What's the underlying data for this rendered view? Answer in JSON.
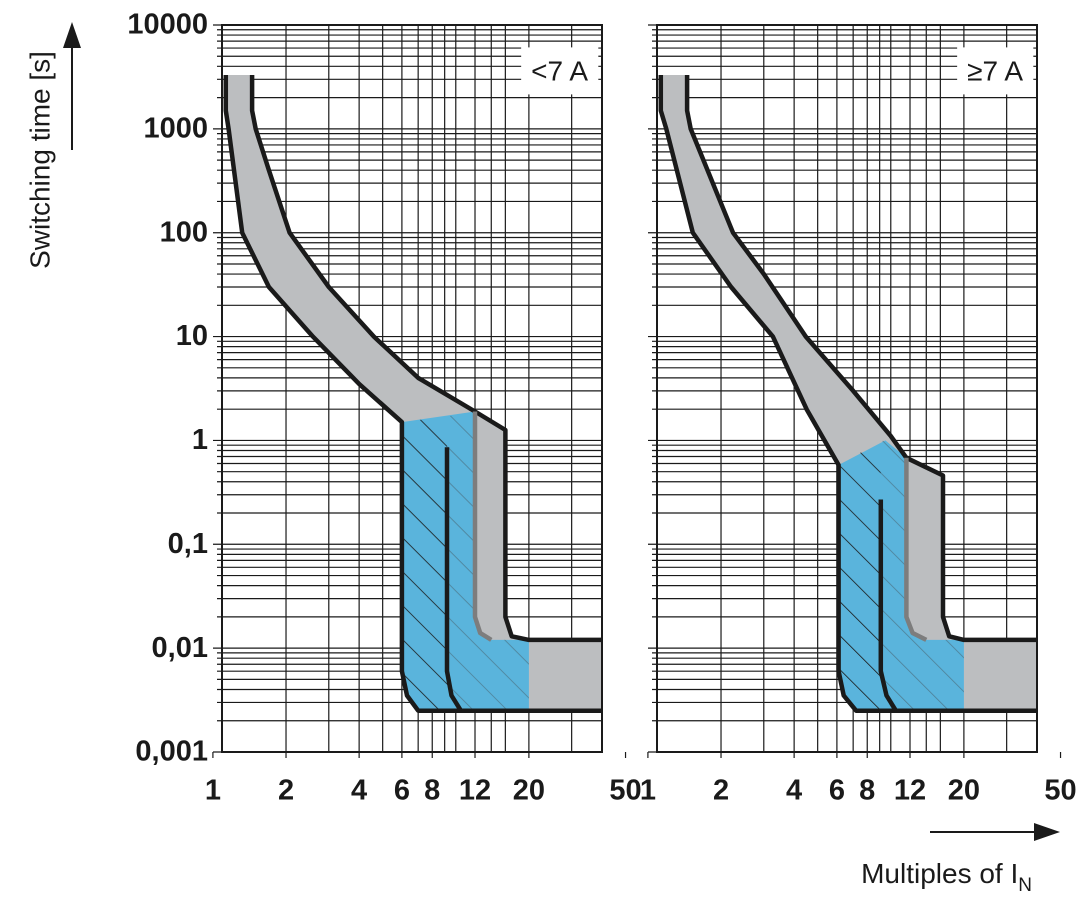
{
  "chart_data": [
    {
      "type": "band",
      "title": "<7 A",
      "y_label": "Switching time [s]",
      "log_x": true,
      "log_y": true,
      "xlim": [
        1.09,
        40
      ],
      "ylim": [
        0.001,
        10000
      ],
      "xticks": [
        1,
        2,
        4,
        6,
        8,
        12,
        20,
        50
      ],
      "yticks": [
        {
          "value": 0.001,
          "label": "0,001"
        },
        {
          "value": 0.01,
          "label": "0,01"
        },
        {
          "value": 0.1,
          "label": "0,1"
        },
        1,
        10,
        100,
        1000,
        10000
      ],
      "ytick_labels": true,
      "xgrid": [
        2,
        3,
        4,
        5,
        6,
        7,
        8,
        9,
        10,
        12,
        14,
        16,
        20,
        30,
        40
      ],
      "y_minor_multiples": [
        2,
        3,
        4,
        5,
        6,
        7,
        8,
        9
      ],
      "fills": [
        {
          "color": "#bcbec0",
          "x": [
            1.13,
            1.13,
            1.16,
            1.32,
            1.7,
            2.58,
            4,
            6,
            6,
            6.3,
            7,
            40,
            40,
            20,
            17,
            16,
            16,
            12,
            7,
            4.6,
            3,
            2.07,
            1.7,
            1.5,
            1.45,
            1.45
          ],
          "values": [
            3300,
            1500,
            1000,
            100,
            30,
            10,
            3.5,
            1.5,
            0.006,
            0.0035,
            0.0025,
            0.0025,
            0.012,
            0.012,
            0.013,
            0.02,
            1.26,
            1.9,
            4,
            10,
            30,
            100,
            400,
            1000,
            1500,
            3300
          ]
        },
        {
          "color": "#5ab4dc",
          "x": [
            6,
            12,
            12,
            12.6,
            14,
            20,
            20,
            7,
            6.3,
            6
          ],
          "values": [
            1.5,
            1.9,
            0.02,
            0.014,
            0.012,
            0.012,
            0.0025,
            0.0025,
            0.0035,
            0.006
          ]
        },
        {
          "hatch": "#1a1a1a",
          "x": [
            6,
            9.2,
            9.2,
            9.6,
            10.5,
            7,
            6.3,
            6
          ],
          "values": [
            1.5,
            1.7,
            0.006,
            0.0035,
            0.0025,
            0.0025,
            0.0035,
            0.006
          ]
        },
        {
          "hatch": "#4f7f95",
          "x": [
            9.2,
            12,
            12,
            12.6,
            14,
            20,
            20,
            10.5,
            9.6,
            9.2
          ],
          "values": [
            1.7,
            1.9,
            0.02,
            0.014,
            0.012,
            0.012,
            0.0025,
            0.0025,
            0.0035,
            0.006
          ]
        }
      ],
      "lines": [
        {
          "color": "#1a1a1a",
          "x": [
            1.13,
            1.13,
            1.16,
            1.32,
            1.7,
            2.58,
            4,
            6,
            6,
            6.3,
            7,
            40
          ],
          "values": [
            3300,
            1500,
            1000,
            100,
            30,
            10,
            3.5,
            1.5,
            0.006,
            0.0035,
            0.0025,
            0.0025
          ]
        },
        {
          "color": "#1a1a1a",
          "x": [
            1.45,
            1.45,
            1.5,
            1.7,
            2.07,
            3,
            4.6,
            7,
            12,
            16,
            16,
            17,
            20,
            40
          ],
          "values": [
            3300,
            1500,
            1000,
            400,
            100,
            30,
            10,
            4,
            1.9,
            1.26,
            0.02,
            0.013,
            0.012,
            0.012
          ]
        },
        {
          "color": "#1a1a1a",
          "x": [
            9.2,
            9.2,
            9.6,
            10.5
          ],
          "values": [
            0.86,
            0.006,
            0.0035,
            0.0025
          ]
        },
        {
          "color": "#7d7d7d",
          "x": [
            12,
            12,
            12.6,
            14
          ],
          "values": [
            1.9,
            0.02,
            0.014,
            0.012
          ]
        }
      ]
    },
    {
      "type": "band",
      "title": "≥7 A",
      "x_label": "Multiples of I",
      "x_label_subscript": "N",
      "log_x": true,
      "log_y": true,
      "xlim": [
        1.09,
        40
      ],
      "ylim": [
        0.001,
        10000
      ],
      "xticks": [
        1,
        2,
        4,
        6,
        8,
        12,
        20,
        50
      ],
      "yticks": [
        0.001,
        0.01,
        0.1,
        1,
        10,
        100,
        1000,
        10000
      ],
      "ytick_labels": false,
      "xgrid": [
        2,
        3,
        4,
        5,
        6,
        7,
        8,
        9,
        10,
        12,
        14,
        16,
        20,
        30,
        40
      ],
      "y_minor_multiples": [
        2,
        3,
        4,
        5,
        6,
        7,
        8,
        9
      ],
      "fills": [
        {
          "color": "#bcbec0",
          "x": [
            1.13,
            1.13,
            1.19,
            1.53,
            2.2,
            3.27,
            4.5,
            6.1,
            6.1,
            6.4,
            7.2,
            40,
            40,
            20,
            17.4,
            16.4,
            16.4,
            11.6,
            10,
            7,
            4.47,
            3,
            2.24,
            1.5,
            1.45,
            1.45
          ],
          "values": [
            3300,
            1500,
            1000,
            100,
            30,
            10,
            2,
            0.58,
            0.006,
            0.0035,
            0.0025,
            0.0025,
            0.012,
            0.012,
            0.013,
            0.02,
            0.46,
            0.68,
            1.1,
            3,
            10,
            40,
            100,
            1000,
            1500,
            3300
          ]
        },
        {
          "color": "#5ab4dc",
          "x": [
            6.1,
            9.5,
            11.6,
            11.6,
            12.3,
            14,
            20,
            20,
            7.2,
            6.4,
            6.1
          ],
          "values": [
            0.58,
            1.0,
            0.68,
            0.02,
            0.014,
            0.012,
            0.012,
            0.0025,
            0.0025,
            0.0035,
            0.006
          ]
        },
        {
          "hatch": "#1a1a1a",
          "x": [
            6.1,
            9.1,
            9.1,
            9.6,
            10.5,
            7.2,
            6.4,
            6.1
          ],
          "values": [
            0.58,
            0.98,
            0.006,
            0.0035,
            0.0025,
            0.0025,
            0.0035,
            0.006
          ]
        },
        {
          "hatch": "#4f7f95",
          "x": [
            9.1,
            9.5,
            11.6,
            11.6,
            12.3,
            14,
            20,
            20,
            10.5,
            9.6,
            9.1
          ],
          "values": [
            0.98,
            1.0,
            0.68,
            0.02,
            0.014,
            0.012,
            0.012,
            0.0025,
            0.0025,
            0.0035,
            0.006
          ]
        }
      ],
      "lines": [
        {
          "color": "#1a1a1a",
          "x": [
            1.13,
            1.13,
            1.19,
            1.53,
            2.2,
            3.27,
            4.5,
            6.1,
            6.1,
            6.4,
            7.2,
            40
          ],
          "values": [
            3300,
            1500,
            1000,
            100,
            30,
            10,
            2,
            0.58,
            0.006,
            0.0035,
            0.0025,
            0.0025
          ]
        },
        {
          "color": "#1a1a1a",
          "x": [
            1.45,
            1.45,
            1.5,
            2.24,
            3,
            4.47,
            7,
            10,
            11.6,
            16.4,
            16.4,
            17.4,
            20,
            40
          ],
          "values": [
            3300,
            1500,
            1000,
            100,
            40,
            10,
            3,
            1.1,
            0.68,
            0.46,
            0.02,
            0.013,
            0.012,
            0.012
          ]
        },
        {
          "color": "#1a1a1a",
          "x": [
            9.1,
            9.1,
            9.6,
            10.5
          ],
          "values": [
            0.27,
            0.006,
            0.0035,
            0.0025
          ]
        },
        {
          "color": "#7d7d7d",
          "x": [
            11.6,
            11.6,
            12.3,
            14
          ],
          "values": [
            0.68,
            0.02,
            0.014,
            0.012
          ]
        }
      ]
    }
  ]
}
